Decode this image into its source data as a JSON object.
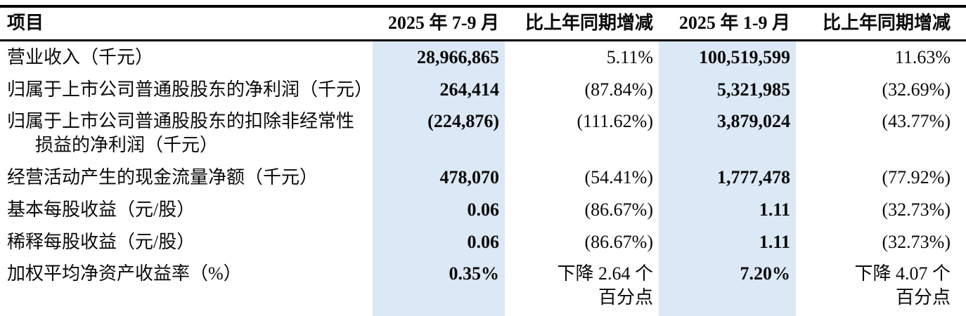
{
  "colors": {
    "highlight": "#dbe8f5",
    "border": "#000000"
  },
  "table": {
    "columns": {
      "item": "项目",
      "q3_period": "2025 年 7-9 月",
      "q3_change": "比上年同期增减",
      "ytd_period": "2025 年 1-9 月",
      "ytd_change": "比上年同期增减"
    },
    "rows": [
      {
        "label": "营业收入（千元）",
        "q3": "28,966,865",
        "q3_change": "5.11%",
        "ytd": "100,519,599",
        "ytd_change": "11.63%"
      },
      {
        "label": "归属于上市公司普通股股东的净利润（千元）",
        "q3": "264,414",
        "q3_change": "(87.84%)",
        "ytd": "5,321,985",
        "ytd_change": "(32.69%)"
      },
      {
        "label": "归属于上市公司普通股股东的扣除非经常性\n损益的净利润（千元）",
        "q3": "(224,876)",
        "q3_change": "(111.62%)",
        "ytd": "3,879,024",
        "ytd_change": "(43.77%)"
      },
      {
        "label": "经营活动产生的现金流量净额（千元）",
        "q3": "478,070",
        "q3_change": "(54.41%)",
        "ytd": "1,777,478",
        "ytd_change": "(77.92%)"
      },
      {
        "label": "基本每股收益（元/股）",
        "q3": "0.06",
        "q3_change": "(86.67%)",
        "ytd": "1.11",
        "ytd_change": "(32.73%)"
      },
      {
        "label": "稀释每股收益（元/股）",
        "q3": "0.06",
        "q3_change": "(86.67%)",
        "ytd": "1.11",
        "ytd_change": "(32.73%)"
      },
      {
        "label": "加权平均净资产收益率（%）",
        "q3": "0.35%",
        "q3_change": "下降 2.64 个\n百分点",
        "ytd": "7.20%",
        "ytd_change": "下降 4.07 个\n百分点"
      }
    ]
  }
}
